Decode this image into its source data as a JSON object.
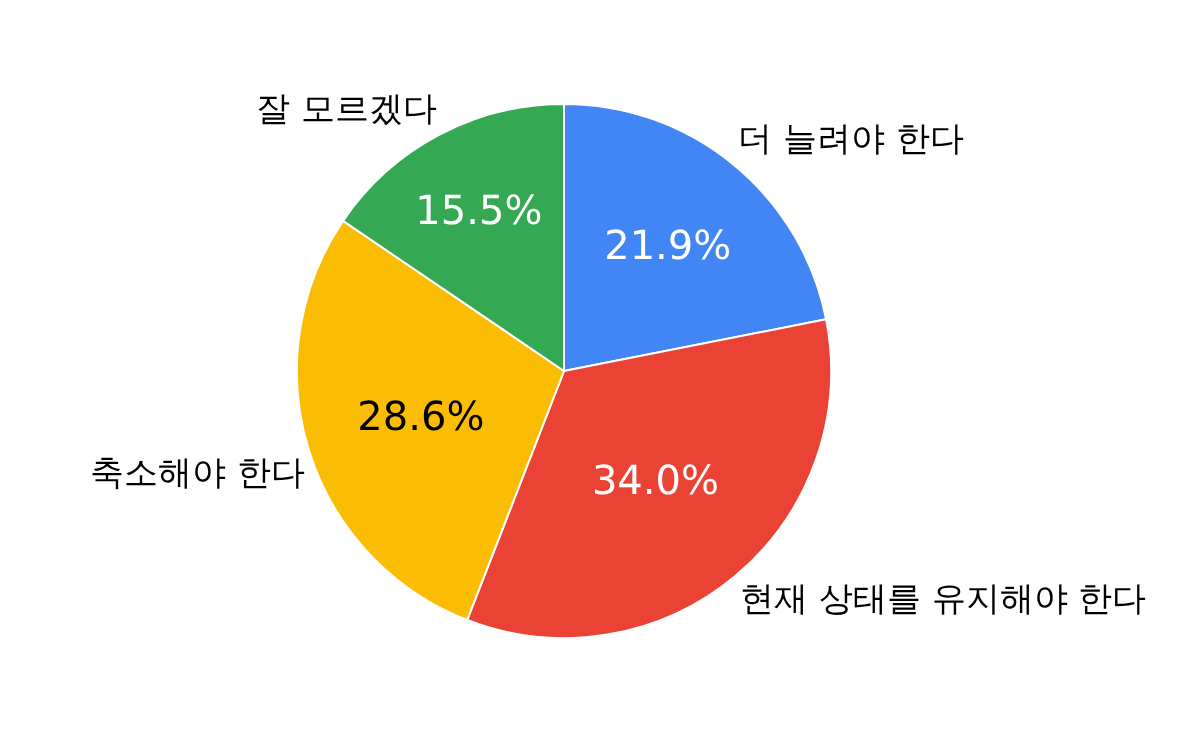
{
  "chart_data": {
    "type": "pie",
    "categories": [
      "더 늘려야 한다",
      "현재 상태를 유지해야 한다",
      "축소해야 한다",
      "잘 모르겠다"
    ],
    "values": [
      21.9,
      34.0,
      28.6,
      15.5
    ],
    "value_labels": [
      "21.9%",
      "34.0%",
      "28.6%",
      "15.5%"
    ],
    "colors": [
      "#4285f4",
      "#ea4335",
      "#fbbc04",
      "#34a853"
    ],
    "legend": false
  }
}
